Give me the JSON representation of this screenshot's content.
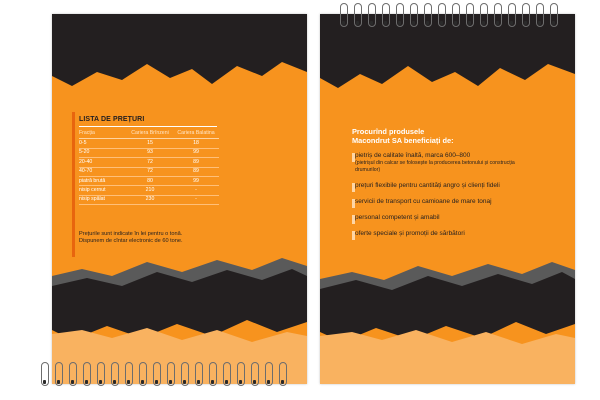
{
  "colors": {
    "orange": "#f7931e",
    "black": "#231f20",
    "gray": "#5a5a5a",
    "light_orange": "#ffd6a5"
  },
  "icons": {
    "binding": "spiral-coil-icon"
  },
  "price_list": {
    "title": "LISTA DE PREȚURI",
    "headers": [
      "Fracția",
      "Cariera Brînzeni",
      "Cariera Balatina"
    ],
    "rows": [
      [
        "0-5",
        "15",
        "18"
      ],
      [
        "5-20",
        "93",
        "99"
      ],
      [
        "20-40",
        "72",
        "89"
      ],
      [
        "40-70",
        "72",
        "89"
      ],
      [
        "piatră brută",
        "80",
        "99"
      ],
      [
        "nisip cernut",
        "210",
        "-"
      ],
      [
        "nisip spălat",
        "230",
        "-"
      ]
    ],
    "note_line1": "Prețurile sunt indicate în lei pentru o tonă.",
    "note_line2": "Dispunem de cîntar electronic de 60 tone."
  },
  "benefits": {
    "title_line1": "Procurînd produsele",
    "title_line2": "Macondrut SA beneficiați de:",
    "items": [
      {
        "text": "pietriș de calitate înaltă, marca 600–800",
        "sub": "(pietrișul din calcar se folosește la producerea betonului și construcția drumurilor)"
      },
      {
        "text": "prețuri flexibile pentru cantități angro și clienți fideli",
        "sub": ""
      },
      {
        "text": "servicii de transport cu camioane de mare tonaj",
        "sub": ""
      },
      {
        "text": "personal competent și amabil",
        "sub": ""
      },
      {
        "text": "oferte speciale și promoții de sărbători",
        "sub": ""
      }
    ]
  }
}
